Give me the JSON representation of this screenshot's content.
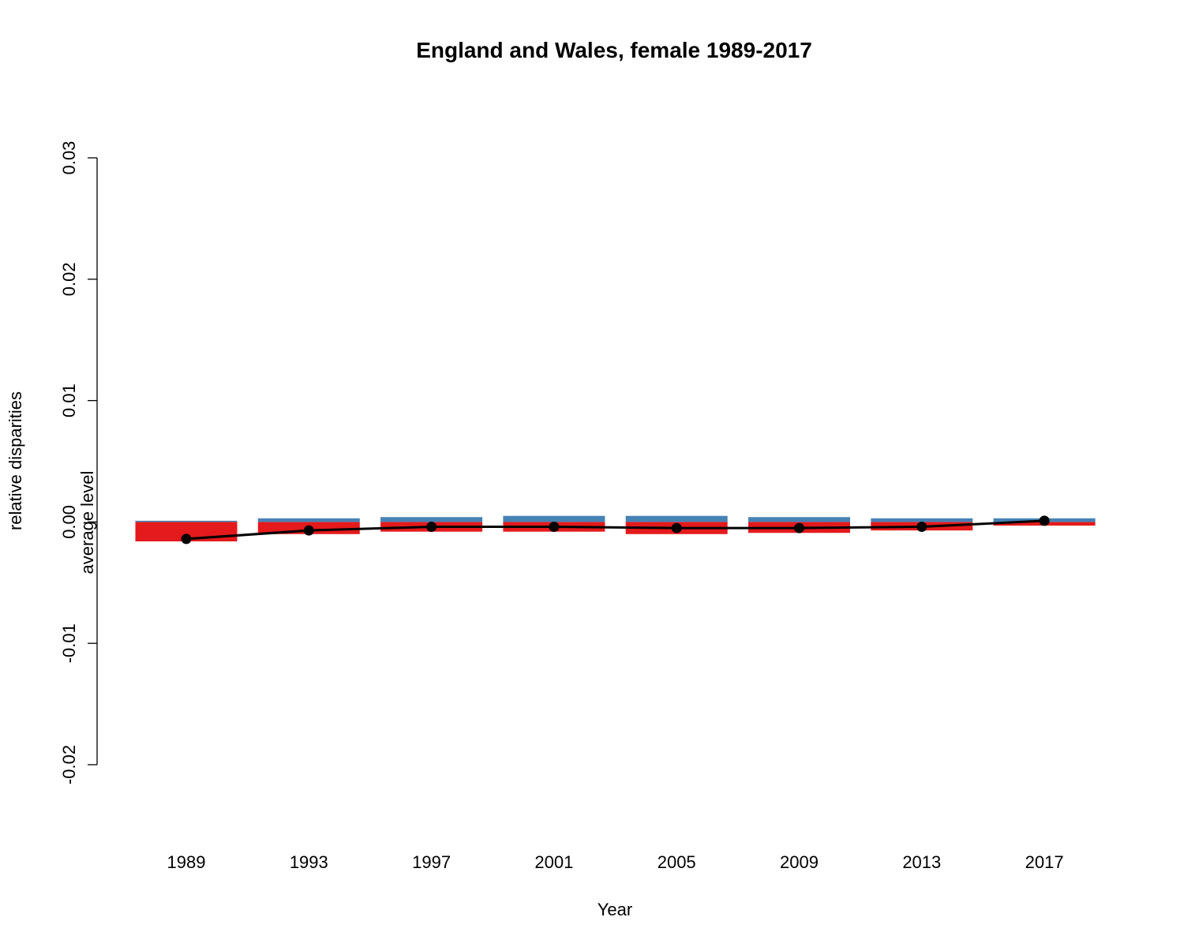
{
  "chart_data": {
    "type": "bar",
    "title": "England and Wales, female 1989-2017",
    "xlabel": "Year",
    "ylabel": "relative disparities",
    "annotation": "average level",
    "ylim": [
      -0.02,
      0.03
    ],
    "yticks": [
      -0.02,
      -0.01,
      0.0,
      0.01,
      0.02,
      0.03
    ],
    "ytick_labels": [
      "-0.02",
      "-0.01",
      "0.00",
      "0.01",
      "0.02",
      "0.03"
    ],
    "categories": [
      "1989",
      "1993",
      "1997",
      "2001",
      "2005",
      "2009",
      "2013",
      "2017"
    ],
    "series": [
      {
        "color": "#e41a1c",
        "values": [
          -0.0016,
          -0.001,
          -0.0008,
          -0.0008,
          -0.001,
          -0.0009,
          -0.0007,
          -0.0003
        ]
      },
      {
        "color": "#4682b4",
        "values": [
          0.0001,
          0.0003,
          0.0004,
          0.0005,
          0.0005,
          0.0004,
          0.0003,
          0.0003
        ]
      }
    ],
    "line": {
      "color": "#000000",
      "values": [
        -0.0014,
        -0.0007,
        -0.0004,
        -0.0004,
        -0.0005,
        -0.0005,
        -0.0004,
        0.0001
      ]
    },
    "grid": false,
    "legend": "none"
  }
}
